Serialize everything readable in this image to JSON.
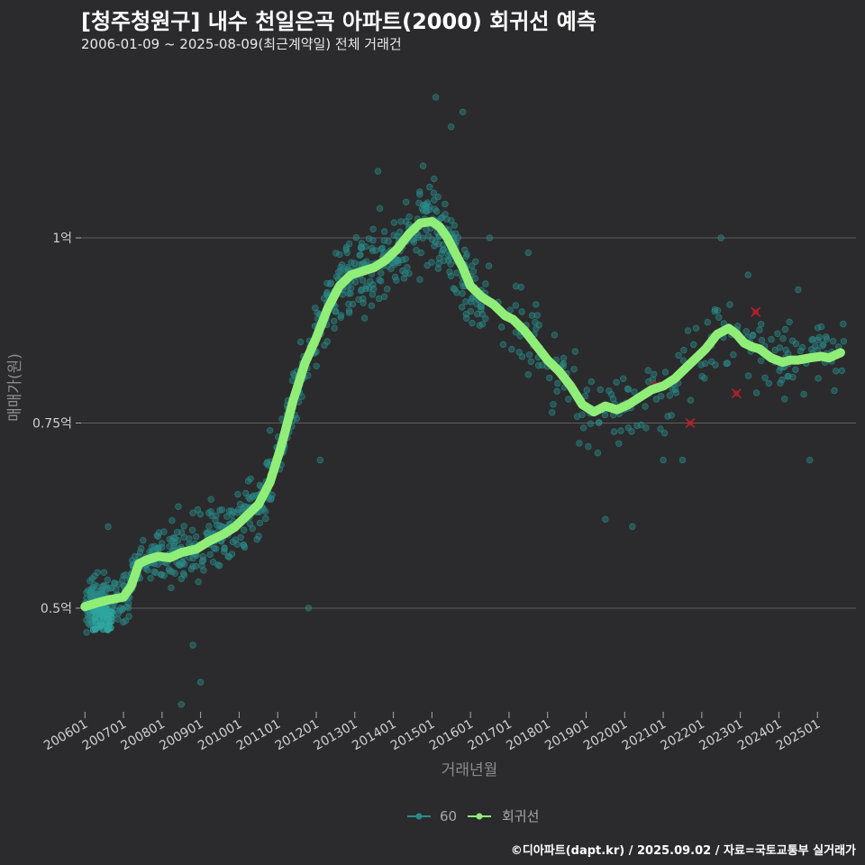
{
  "header": {
    "title": "[청주청원구] 내수 천일은곡 아파트(2000) 회귀선 예측",
    "subtitle": "2006-01-09 ~ 2025-08-09(최근계약일) 전체 거래건"
  },
  "footer": {
    "credit": "©디아파트(dapt.kr) / 2025.09.02 / 자료=국토교통부 실거래가"
  },
  "chart_data": {
    "type": "scatter",
    "xlabel": "거래년월",
    "ylabel": "매매가(원)",
    "xlim": [
      2005.9,
      2026.0
    ],
    "ylim": [
      0.36,
      1.23
    ],
    "x_tick_values": [
      2006.0,
      2007.0,
      2008.0,
      2009.0,
      2010.0,
      2011.0,
      2012.0,
      2013.0,
      2014.0,
      2015.0,
      2016.0,
      2017.0,
      2018.0,
      2019.0,
      2020.0,
      2021.0,
      2022.0,
      2023.0,
      2024.0,
      2025.0
    ],
    "x_tick_labels": [
      "200601",
      "200701",
      "200801",
      "200901",
      "201001",
      "201101",
      "201201",
      "201301",
      "201401",
      "201501",
      "201601",
      "201701",
      "201801",
      "201901",
      "202001",
      "202101",
      "202201",
      "202301",
      "202401",
      "202501"
    ],
    "y_tick_values": [
      0.5,
      0.75,
      1.0
    ],
    "y_tick_labels": [
      "0.5억",
      "0.75억",
      "1억"
    ],
    "grid": true,
    "legend": {
      "position": "bottom",
      "items": [
        "60",
        "회귀선"
      ]
    },
    "colors": {
      "scatter": "#2a8a88",
      "regression": "#90ee78",
      "cancelled": "#c0202a",
      "grid": "#5e5e5e",
      "background": "#2b2b2d"
    },
    "regression": {
      "name": "회귀선",
      "x": [
        2006.0,
        2006.3,
        2006.6,
        2007.0,
        2007.2,
        2007.4,
        2007.6,
        2007.9,
        2008.2,
        2008.5,
        2008.9,
        2009.2,
        2009.6,
        2009.9,
        2010.2,
        2010.5,
        2010.8,
        2011.1,
        2011.4,
        2011.7,
        2012.0,
        2012.3,
        2012.6,
        2012.9,
        2013.2,
        2013.5,
        2013.8,
        2014.1,
        2014.4,
        2014.7,
        2015.0,
        2015.2,
        2015.4,
        2015.6,
        2015.8,
        2016.0,
        2016.3,
        2016.6,
        2016.9,
        2017.1,
        2017.4,
        2017.7,
        2018.0,
        2018.3,
        2018.6,
        2018.9,
        2019.2,
        2019.5,
        2019.8,
        2020.1,
        2020.4,
        2020.7,
        2021.0,
        2021.3,
        2021.6,
        2021.9,
        2022.1,
        2022.4,
        2022.7,
        2022.9,
        2023.1,
        2023.3,
        2023.5,
        2023.8,
        2024.1,
        2024.3,
        2024.5,
        2024.8,
        2025.1,
        2025.3,
        2025.6
      ],
      "values": [
        0.502,
        0.507,
        0.511,
        0.515,
        0.53,
        0.56,
        0.565,
        0.57,
        0.568,
        0.575,
        0.58,
        0.59,
        0.6,
        0.61,
        0.625,
        0.64,
        0.67,
        0.72,
        0.78,
        0.83,
        0.865,
        0.905,
        0.935,
        0.95,
        0.955,
        0.96,
        0.97,
        0.985,
        1.005,
        1.02,
        1.022,
        1.015,
        1.0,
        0.98,
        0.96,
        0.935,
        0.92,
        0.91,
        0.895,
        0.89,
        0.875,
        0.855,
        0.835,
        0.82,
        0.8,
        0.775,
        0.765,
        0.773,
        0.768,
        0.775,
        0.785,
        0.795,
        0.8,
        0.81,
        0.825,
        0.84,
        0.85,
        0.87,
        0.878,
        0.87,
        0.858,
        0.853,
        0.85,
        0.838,
        0.832,
        0.835,
        0.835,
        0.838,
        0.84,
        0.838,
        0.845
      ]
    },
    "scatter_series": {
      "name": "60",
      "count": 1100,
      "points_sample": [
        [
          2006.3,
          0.48
        ],
        [
          2006.6,
          0.61
        ],
        [
          2007.8,
          0.56
        ],
        [
          2008.8,
          0.45
        ],
        [
          2009.0,
          0.4
        ],
        [
          2008.5,
          0.37
        ],
        [
          2010.8,
          0.74
        ],
        [
          2011.8,
          0.5
        ],
        [
          2012.1,
          0.7
        ],
        [
          2012.8,
          0.98
        ],
        [
          2013.6,
          1.09
        ],
        [
          2015.1,
          1.19
        ],
        [
          2015.5,
          1.15
        ],
        [
          2015.8,
          1.17
        ],
        [
          2016.5,
          1.0
        ],
        [
          2017.5,
          0.98
        ],
        [
          2019.5,
          0.62
        ],
        [
          2020.2,
          0.61
        ],
        [
          2021.0,
          0.7
        ],
        [
          2021.5,
          0.7
        ],
        [
          2022.5,
          1.0
        ],
        [
          2023.2,
          0.95
        ],
        [
          2024.5,
          0.93
        ],
        [
          2024.8,
          0.7
        ],
        [
          2025.1,
          0.88
        ]
      ]
    },
    "cancelled_points": [
      [
        2020.8,
        0.8
      ],
      [
        2020.9,
        0.8
      ],
      [
        2021.7,
        0.75
      ],
      [
        2022.9,
        0.79
      ],
      [
        2023.4,
        0.9
      ]
    ]
  }
}
